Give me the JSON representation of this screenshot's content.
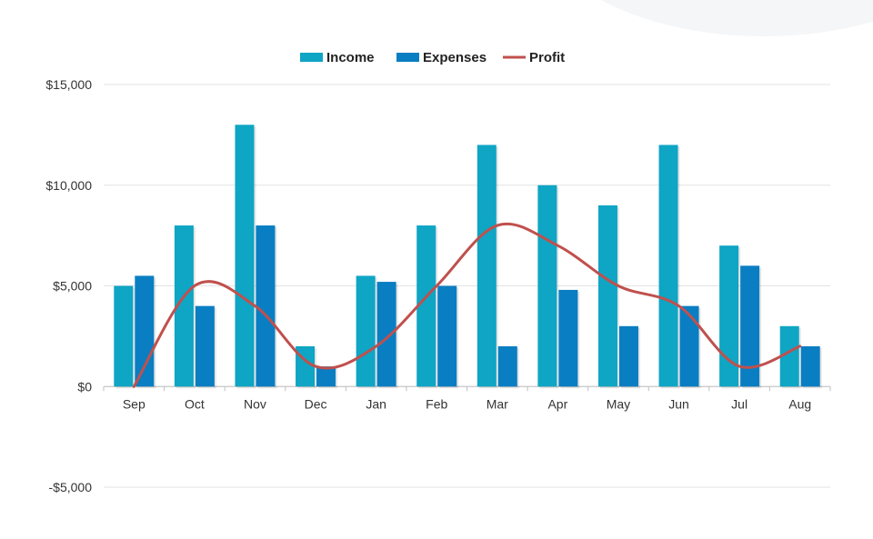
{
  "chart_data": {
    "type": "bar",
    "title": "",
    "xlabel": "",
    "ylabel": "",
    "categories": [
      "Sep",
      "Oct",
      "Nov",
      "Dec",
      "Jan",
      "Feb",
      "Mar",
      "Apr",
      "May",
      "Jun",
      "Jul",
      "Aug"
    ],
    "series": [
      {
        "name": "Income",
        "type": "bar",
        "color": "#0FA5C4",
        "values": [
          5000,
          8000,
          13000,
          2000,
          5500,
          8000,
          12000,
          10000,
          9000,
          12000,
          7000,
          3000
        ]
      },
      {
        "name": "Expenses",
        "type": "bar",
        "color": "#0A7EC2",
        "values": [
          5500,
          4000,
          8000,
          1000,
          5200,
          5000,
          2000,
          4800,
          3000,
          4000,
          6000,
          2000
        ]
      },
      {
        "name": "Profit",
        "type": "line",
        "smooth": true,
        "color": "#C0504D",
        "values": [
          0,
          5000,
          4000,
          1000,
          2000,
          5000,
          8000,
          7000,
          5000,
          4000,
          1000,
          2000
        ]
      }
    ],
    "ylim": [
      -5000,
      15000
    ],
    "y_ticks": [
      {
        "value": 15000,
        "label": "$15,000"
      },
      {
        "value": 10000,
        "label": "$10,000"
      },
      {
        "value": 5000,
        "label": "$5,000"
      },
      {
        "value": 0,
        "label": "$0"
      },
      {
        "value": -5000,
        "label": "-$5,000"
      }
    ],
    "grid": true,
    "legend_position": "top-center"
  }
}
